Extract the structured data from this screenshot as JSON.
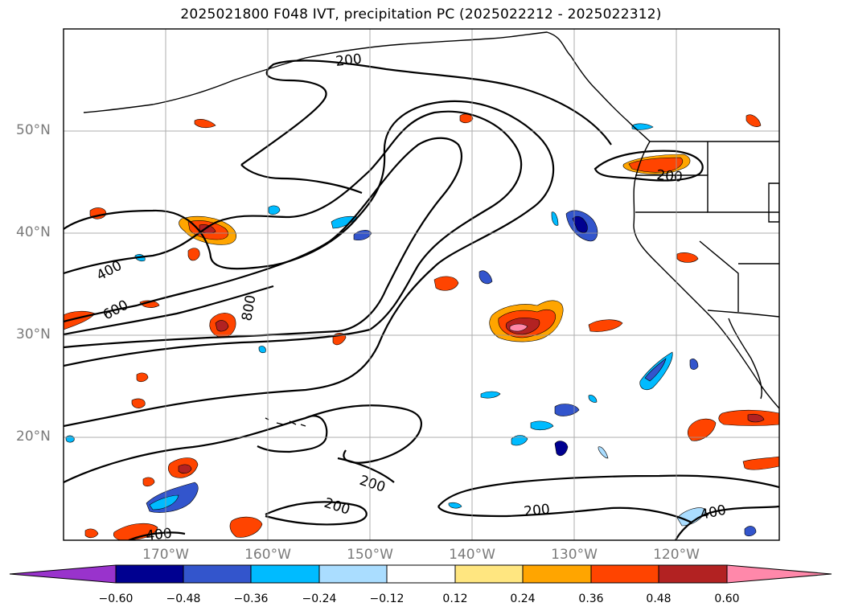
{
  "title": "2025021800 F048 IVT, precipitation PC (2025022212 - 2025022312)",
  "lat_labels": [
    "50°N",
    "40°N",
    "30°N",
    "20°N"
  ],
  "lon_labels": [
    "170°W",
    "160°W",
    "150°W",
    "140°W",
    "130°W",
    "120°W"
  ],
  "contour_labels": [
    "200",
    "200",
    "400",
    "600",
    "800",
    "200",
    "200",
    "200",
    "400",
    "400"
  ],
  "colorbar": {
    "ticks": [
      "−0.60",
      "−0.48",
      "−0.36",
      "−0.24",
      "−0.12",
      "0.12",
      "0.24",
      "0.36",
      "0.48",
      "0.60"
    ],
    "colors": [
      "#9933cc",
      "#000090",
      "#3355cc",
      "#00bbff",
      "#aaddff",
      "#ffffff",
      "#ffe680",
      "#ffa500",
      "#ff4400",
      "#b22222",
      "#ff88aa"
    ]
  }
}
